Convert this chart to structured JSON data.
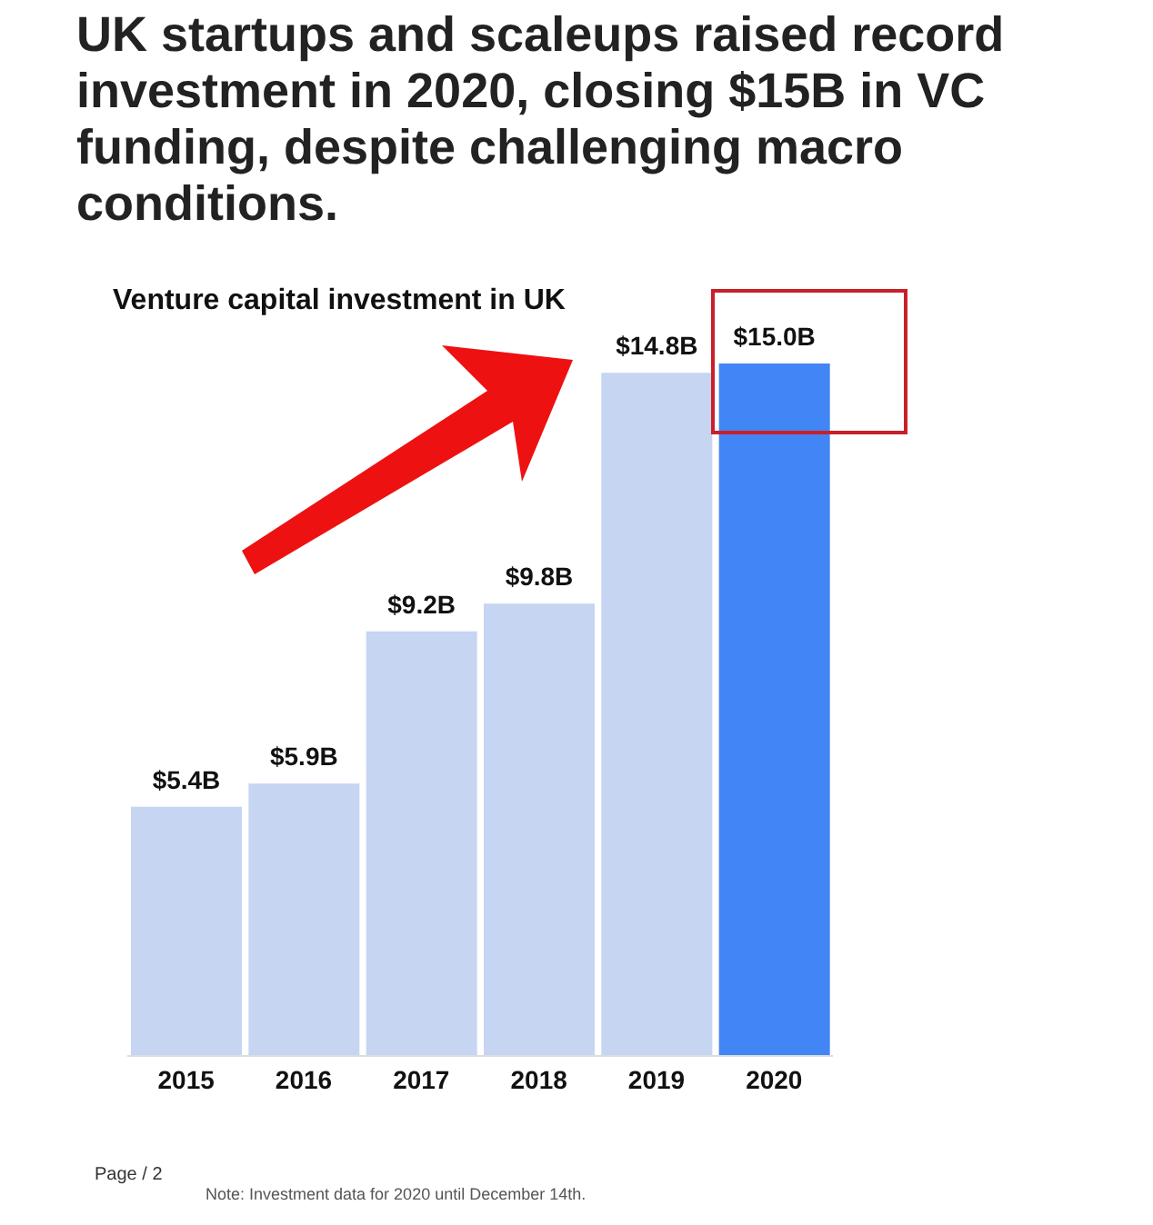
{
  "chart_data": {
    "type": "bar",
    "title": "UK startups and scaleups raised record investment in 2020, closing $15B in VC funding, despite challenging macro conditions.",
    "subtitle": "Venture capital investment in UK",
    "categories": [
      "2015",
      "2016",
      "2017",
      "2018",
      "2019",
      "2020"
    ],
    "values": [
      5.4,
      5.9,
      9.2,
      9.8,
      14.8,
      15.0
    ],
    "colors": [
      "#c5d5f2",
      "#c5d5f2",
      "#c5d5f2",
      "#c5d5f2",
      "#c5d5f2",
      "#4285f4"
    ],
    "value_labels": [
      "$5.4B",
      "$5.9B",
      "$9.2B",
      "$9.8B",
      "$14.8B",
      "$15.0B"
    ],
    "annotations": [
      "Page / 2",
      "Note: Investment data for 2020 until December 14th."
    ],
    "tick_labels": "x"
  }
}
